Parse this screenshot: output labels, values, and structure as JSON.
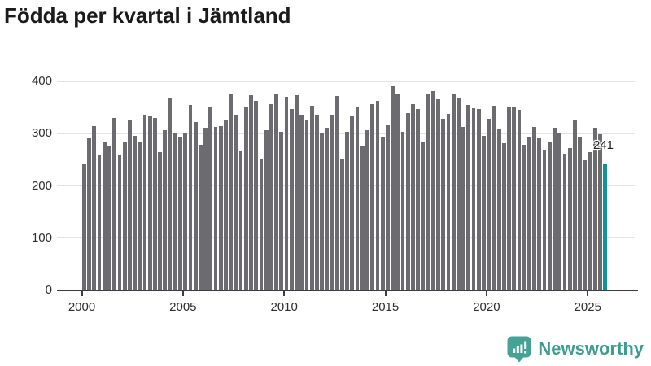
{
  "chart_data": {
    "type": "bar",
    "title": "Födda per kvartal i Jämtland",
    "x_unit": "quarter",
    "start": "2000-Q1",
    "end": "2025-Q4",
    "values": [
      241,
      291,
      314,
      259,
      284,
      277,
      330,
      259,
      283,
      325,
      296,
      283,
      336,
      333,
      330,
      265,
      306,
      367,
      300,
      294,
      300,
      355,
      322,
      278,
      312,
      351,
      313,
      314,
      326,
      377,
      335,
      266,
      351,
      374,
      363,
      252,
      306,
      357,
      375,
      303,
      370,
      347,
      373,
      336,
      325,
      354,
      336,
      301,
      311,
      335,
      372,
      251,
      304,
      333,
      351,
      275,
      307,
      357,
      363,
      293,
      316,
      390,
      376,
      303,
      339,
      357,
      347,
      285,
      376,
      382,
      365,
      329,
      338,
      377,
      367,
      313,
      355,
      348,
      347,
      296,
      329,
      354,
      310,
      281,
      352,
      350,
      346,
      278,
      294,
      313,
      291,
      269,
      285,
      312,
      300,
      262,
      272,
      325,
      294,
      249,
      265,
      312,
      299,
      241
    ],
    "highlight": {
      "index": 103,
      "quarter": "2025-Q4",
      "value": 241,
      "label": "241"
    },
    "xticks": [
      {
        "label": "2000",
        "year": 2000
      },
      {
        "label": "2005",
        "year": 2005
      },
      {
        "label": "2010",
        "year": 2010
      },
      {
        "label": "2015",
        "year": 2015
      },
      {
        "label": "2020",
        "year": 2020
      },
      {
        "label": "2025",
        "year": 2025
      }
    ],
    "yticks": [
      {
        "label": "0",
        "value": 0
      },
      {
        "label": "100",
        "value": 100
      },
      {
        "label": "200",
        "value": 200
      },
      {
        "label": "300",
        "value": 300
      },
      {
        "label": "400",
        "value": 400
      }
    ],
    "ylim": [
      0,
      400
    ],
    "xlabel": "",
    "ylabel": "",
    "grid": "horizontal",
    "legend": "none",
    "colors": {
      "bar": "#6b6b70",
      "highlight": "#10949b",
      "grid": "#e3e3e3",
      "axis": "#3d3d3d",
      "title_text": "#1b1b1b",
      "tick_text": "#2e2e2e"
    }
  },
  "footer": {
    "brand": "Newsworthy",
    "brand_color": "#3e9d90",
    "logo_icon": "speech-bubble-bar-chart-exclamation",
    "logo_icon_color": "#45a294"
  }
}
